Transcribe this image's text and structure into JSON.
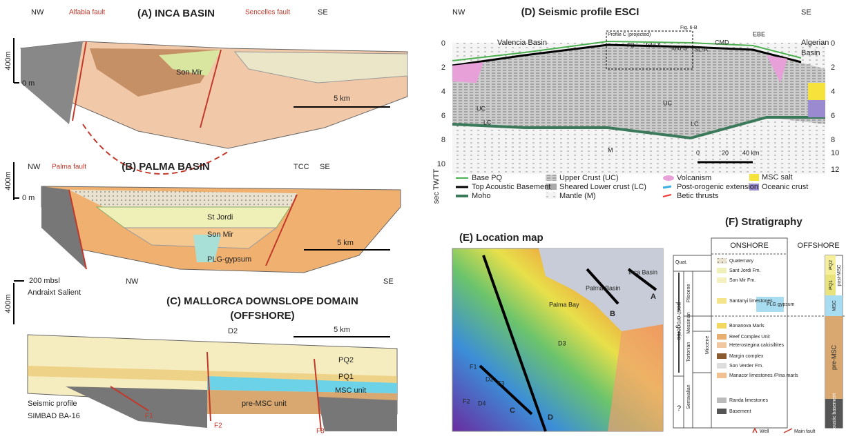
{
  "panel_a": {
    "title": "(A) INCA BASIN",
    "nw": "NW",
    "se": "SE",
    "faults": [
      "Alfabia fault",
      "Sencelles fault"
    ],
    "unit": "Son Mir",
    "vscale": "400m",
    "zero": "0 m",
    "hscale": "5 km"
  },
  "panel_b": {
    "title": "(B) PALMA BASIN",
    "nw": "NW",
    "se": "SE",
    "tcc": "TCC",
    "fault": "Palma fault",
    "vscale": "400m",
    "zero": "0 m",
    "units": [
      "St Jordi",
      "Son Mir",
      "PLG-gypsum"
    ],
    "hscale": "5 km"
  },
  "panel_c": {
    "title": [
      "(C) MALLORCA DOWNSLOPE DOMAIN",
      "(OFFSHORE)"
    ],
    "depth": "200 mbsl",
    "nw": "NW",
    "se": "SE",
    "salient": "Andraixt Salient",
    "vscale": "400m",
    "d2": "D2",
    "hscale": "5 km",
    "units": [
      "PQ2",
      "PQ1",
      "MSC unit",
      "pre-MSC unit"
    ],
    "profile": [
      "Seismic profile",
      "SIMBAD BA-16"
    ],
    "faults": [
      "F1",
      "F2",
      "F3"
    ]
  },
  "panel_d": {
    "title": "(D) Seismic profile ESCI",
    "nw": "NW",
    "se": "SE",
    "left_basin": "Valencia Basin",
    "right_basin": [
      "Algerian",
      "Basin"
    ],
    "box": "Profile C (projected)",
    "fig": "Fig. 6-B",
    "features": [
      "F2",
      "fold A",
      "fold B'",
      "SL-A'",
      "CMD",
      "EBE"
    ],
    "crust": [
      "UC",
      "LC",
      "UC",
      "LC",
      "M"
    ],
    "left_ticks": [
      "0",
      "2",
      "4",
      "6",
      "8",
      "10"
    ],
    "right_ticks": [
      "0",
      "2",
      "4",
      "6",
      "8",
      "10",
      "12"
    ],
    "axis_label": "sec TWTT",
    "scale": [
      "0",
      "20",
      "40 km"
    ],
    "legend": [
      "Base PQ",
      "Top Acoustic Basement",
      "Moho",
      "Upper Crust (UC)",
      "Sheared Lower crust (LC)",
      "Mantle (M)",
      "Volcanism",
      "Post-orogenic extension",
      "Betic thrusts",
      "MSC salt",
      "Oceanic crust"
    ]
  },
  "panel_e": {
    "title": "(E) Location map",
    "places": [
      "Inca Basin",
      "Palma Basin",
      "Palma Bay"
    ],
    "profiles": [
      "A",
      "B",
      "C",
      "D"
    ],
    "labels": [
      "D2",
      "D3",
      "D4",
      "F1",
      "F2",
      "F3"
    ]
  },
  "panel_f": {
    "title": "(F) Stratigraphy",
    "onshore": "ONSHORE",
    "offshore": "OFFSHORE",
    "epochs": [
      "Quat.",
      "Pliocene",
      "Messinian",
      "Tortonian",
      "Serravalian",
      "Miocene"
    ],
    "phase": "post-orogenic",
    "unknown": "?",
    "units": [
      "Quaternary",
      "Sant Jordi Fm.",
      "Son Mir Fm.",
      "Santanyi limestones",
      "PLG gypsum",
      "Bonanova Marls",
      "Reef Complex Unit",
      "Heterostegina calcisiltites",
      "Margin complex",
      "Son Verder Fm.",
      "Manacor limestones /Pina marls",
      "Randa limestones",
      "Basement"
    ],
    "offshore_units": [
      "PQ2",
      "PQ1",
      "post-MSC",
      "MSC",
      "pre-MSC",
      "acoustic basement"
    ],
    "key": [
      "Well",
      "Main fault"
    ]
  }
}
